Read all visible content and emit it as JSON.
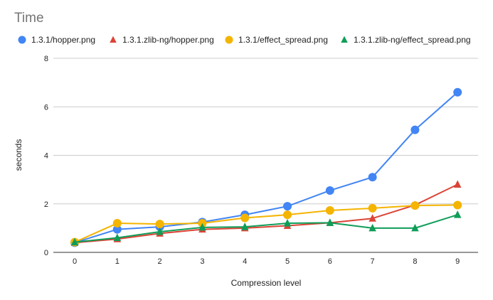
{
  "chart_data": {
    "type": "line",
    "title": "Time",
    "xlabel": "Compression level",
    "ylabel": "seconds",
    "x": [
      0,
      1,
      2,
      3,
      4,
      5,
      6,
      7,
      8,
      9
    ],
    "ylim": [
      0,
      8
    ],
    "yticks": [
      0,
      2,
      4,
      6,
      8
    ],
    "grid": true,
    "legend_position": "top",
    "series": [
      {
        "name": "1.3.1/hopper.png",
        "marker": "circle",
        "color": "#4285f4",
        "values": [
          0.4,
          0.95,
          1.05,
          1.25,
          1.55,
          1.9,
          2.55,
          3.1,
          5.05,
          6.6
        ]
      },
      {
        "name": "1.3.1.zlib-ng/hopper.png",
        "marker": "triangle",
        "color": "#db4437",
        "values": [
          0.4,
          0.55,
          0.78,
          0.95,
          1.0,
          1.1,
          1.22,
          1.4,
          1.95,
          2.8
        ]
      },
      {
        "name": "1.3.1/effect_spread.png",
        "marker": "circle",
        "color": "#f4b400",
        "values": [
          0.42,
          1.2,
          1.17,
          1.2,
          1.42,
          1.55,
          1.73,
          1.82,
          1.93,
          1.95
        ]
      },
      {
        "name": "1.3.1.zlib-ng/effect_spread.png",
        "marker": "triangle",
        "color": "#0f9d58",
        "values": [
          0.42,
          0.6,
          0.85,
          1.03,
          1.05,
          1.2,
          1.22,
          1.0,
          1.0,
          1.55
        ]
      }
    ]
  }
}
